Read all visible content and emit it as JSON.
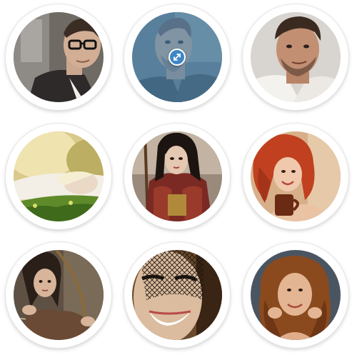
{
  "gallery": {
    "hovered_index": 2,
    "accent_color": "#3e86c6",
    "tint_color": "#4985b5",
    "items": [
      {
        "index": 1,
        "subject": "man-with-glasses-portrait"
      },
      {
        "index": 2,
        "subject": "man-portrait-blue-tint"
      },
      {
        "index": 3,
        "subject": "man-portrait-smirk"
      },
      {
        "index": 4,
        "subject": "blonde-woman-lying-in-grass"
      },
      {
        "index": 5,
        "subject": "warrior-woman-armor"
      },
      {
        "index": 6,
        "subject": "redhead-woman-with-cup"
      },
      {
        "index": 7,
        "subject": "archer-woman-bow"
      },
      {
        "index": 8,
        "subject": "woman-with-veil-smiling"
      },
      {
        "index": 9,
        "subject": "woman-curly-hair-portrait"
      }
    ],
    "expand_icon": "expand-arrows-icon"
  }
}
